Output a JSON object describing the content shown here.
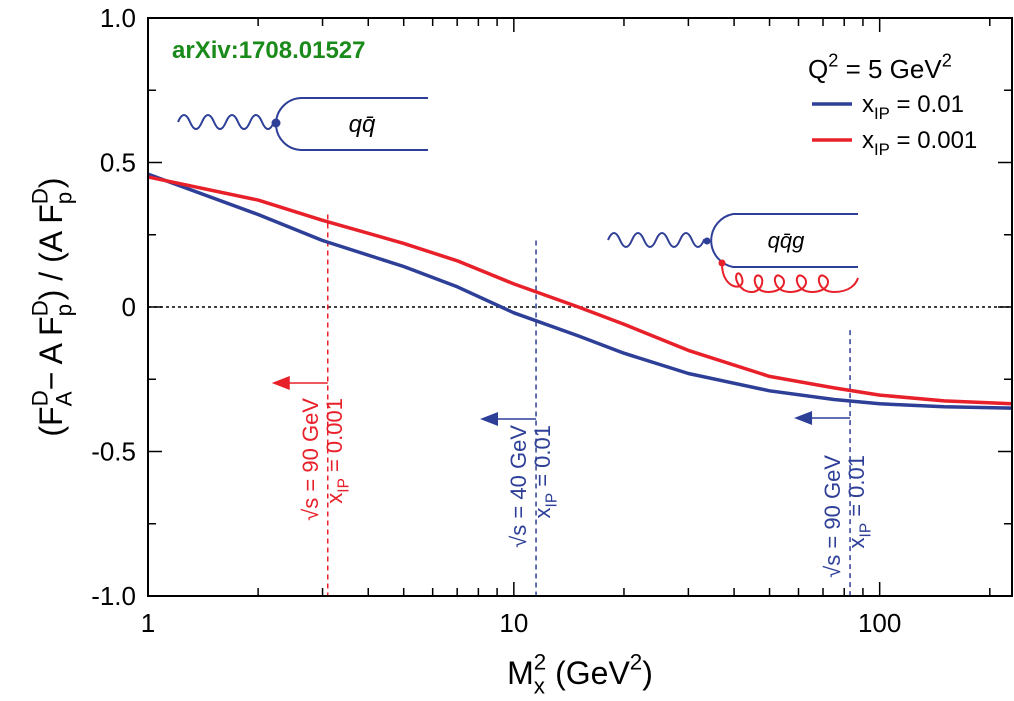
{
  "chart_data": {
    "type": "line",
    "annotation_text": "arXiv:1708.01527",
    "x_label": "M_{x}^{2} (GeV^{2})",
    "y_label": "(F_{A}^{D}− A F_{p}^{D}) / (A F_{p}^{D})",
    "legend_title": "Q^{2} = 5 GeV^{2}",
    "legend_position": "upper right",
    "x": [
      1,
      2,
      3,
      5,
      7,
      10,
      15,
      20,
      30,
      50,
      75,
      100,
      150,
      230
    ],
    "series": [
      {
        "name": "x_{IP} = 0.01",
        "color": "#2e3f98",
        "values": [
          0.46,
          0.32,
          0.23,
          0.14,
          0.07,
          -0.02,
          -0.1,
          -0.16,
          -0.23,
          -0.29,
          -0.32,
          -0.335,
          -0.345,
          -0.35
        ]
      },
      {
        "name": "x_{IP} = 0.001",
        "color": "#e8202a",
        "values": [
          0.45,
          0.37,
          0.3,
          0.22,
          0.16,
          0.08,
          0.0,
          -0.06,
          -0.15,
          -0.24,
          -0.28,
          -0.305,
          -0.325,
          -0.335
        ]
      }
    ],
    "xscale": "log",
    "xlim": [
      1,
      230
    ],
    "ylim": [
      -1,
      1
    ],
    "xticks": [
      1,
      10,
      100
    ],
    "xminor": [
      2,
      3,
      4,
      5,
      6,
      7,
      8,
      9,
      20,
      30,
      40,
      50,
      60,
      70,
      80,
      90,
      200
    ],
    "yticks": [
      {
        "value": 1,
        "label": "1.0"
      },
      0.5,
      0,
      -0.5,
      {
        "value": -1,
        "label": "-1.0"
      }
    ],
    "yminor": [
      0.75,
      0.25,
      -0.25,
      -0.75
    ],
    "hline": 0,
    "markers": [
      {
        "x": 3.1,
        "ymax": 0.32,
        "color": "#e8202a",
        "labels": [
          "√s = 90 GeV",
          "x_{IP} = 0.001"
        ]
      },
      {
        "x": 11.5,
        "ymax": 0.23,
        "color": "#2e3f98",
        "labels": [
          "√s = 40 GeV",
          "x_{IP} = 0.01"
        ]
      },
      {
        "x": 83,
        "ymax": -0.08,
        "color": "#2e3f98",
        "labels": [
          "√s = 90 GeV",
          "x_{IP} = 0.01"
        ]
      }
    ],
    "diagrams": [
      "qq̄",
      "qq̄g"
    ]
  }
}
